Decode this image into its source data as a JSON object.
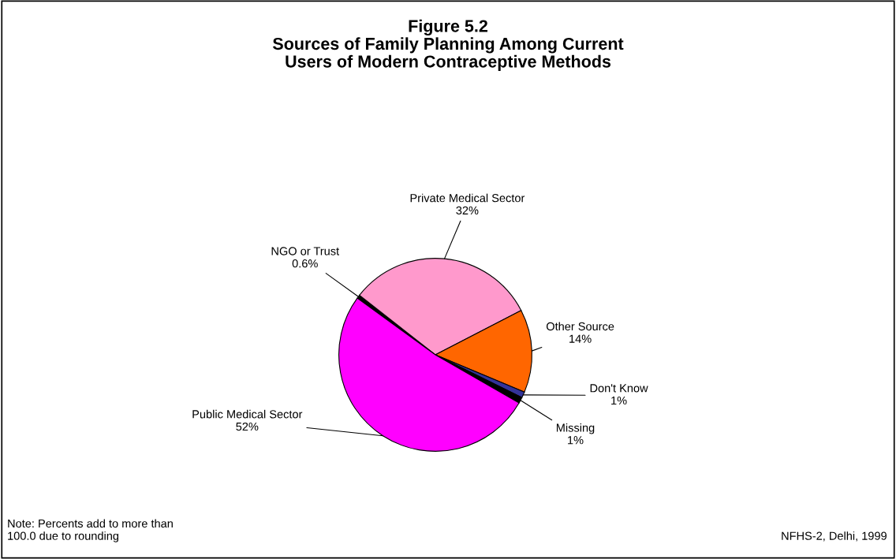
{
  "chart_data": {
    "type": "pie",
    "title": "Figure 5.2\nSources of Family Planning Among Current\nUsers of Modern Contraceptive Methods",
    "categories": [
      "NGO or Trust",
      "Private Medical Sector",
      "Other Source",
      "Don't Know",
      "Missing",
      "Public Medical Sector"
    ],
    "values": [
      0.6,
      32,
      14,
      1,
      1,
      52
    ],
    "value_labels": [
      "0.6%",
      "32%",
      "14%",
      "1%",
      "1%",
      "52%"
    ],
    "colors": [
      "#000000",
      "#ff99cc",
      "#ff6600",
      "#333399",
      "#000000",
      "#ff00ff"
    ],
    "annotations": [
      "Note: Percents add to more than\n100.0 due to rounding",
      "NFHS-2, Delhi, 1999"
    ]
  }
}
